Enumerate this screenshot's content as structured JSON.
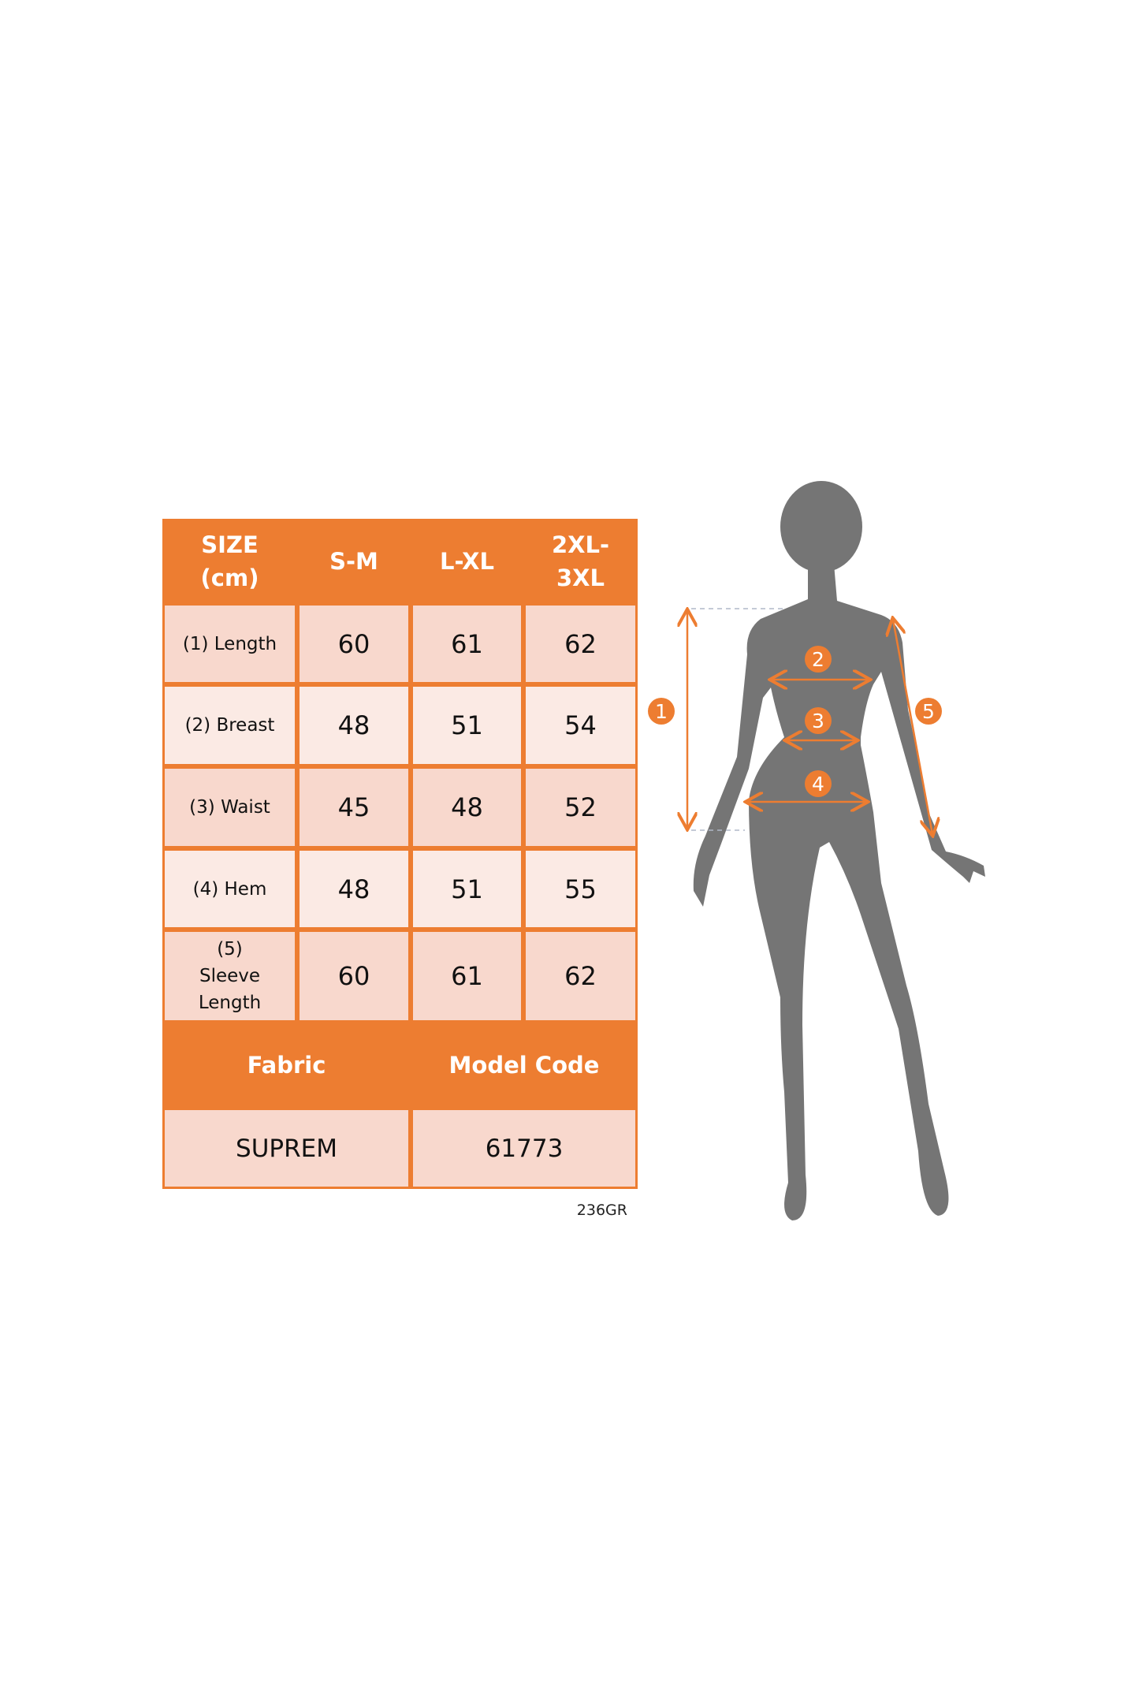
{
  "colors": {
    "accent": "#ED7D31",
    "cell_dark": "#F8D8CD",
    "cell_light": "#FBEAE4",
    "silhouette": "#757575"
  },
  "table": {
    "header": [
      "SIZE (cm)",
      "S-M",
      "L-XL",
      "2XL-3XL"
    ],
    "header_lines": [
      [
        "SIZE",
        "(cm)"
      ],
      [
        "S-M"
      ],
      [
        "L-XL"
      ],
      [
        "2XL-",
        "3XL"
      ]
    ],
    "rows": [
      {
        "label": "(1) Length",
        "values": [
          "60",
          "61",
          "62"
        ]
      },
      {
        "label": "(2) Breast",
        "values": [
          "48",
          "51",
          "54"
        ]
      },
      {
        "label": "(3) Waist",
        "values": [
          "45",
          "48",
          "52"
        ]
      },
      {
        "label": "(4) Hem",
        "values": [
          "48",
          "51",
          "55"
        ]
      },
      {
        "label": "(5) Sleeve Length",
        "values": [
          "60",
          "61",
          "62"
        ]
      }
    ],
    "footer_headers": [
      "Fabric",
      "Model Code"
    ],
    "footer_values": [
      "SUPREM",
      "61773"
    ]
  },
  "code": "236GR",
  "figure": {
    "markers": [
      "1",
      "2",
      "3",
      "4",
      "5"
    ]
  }
}
